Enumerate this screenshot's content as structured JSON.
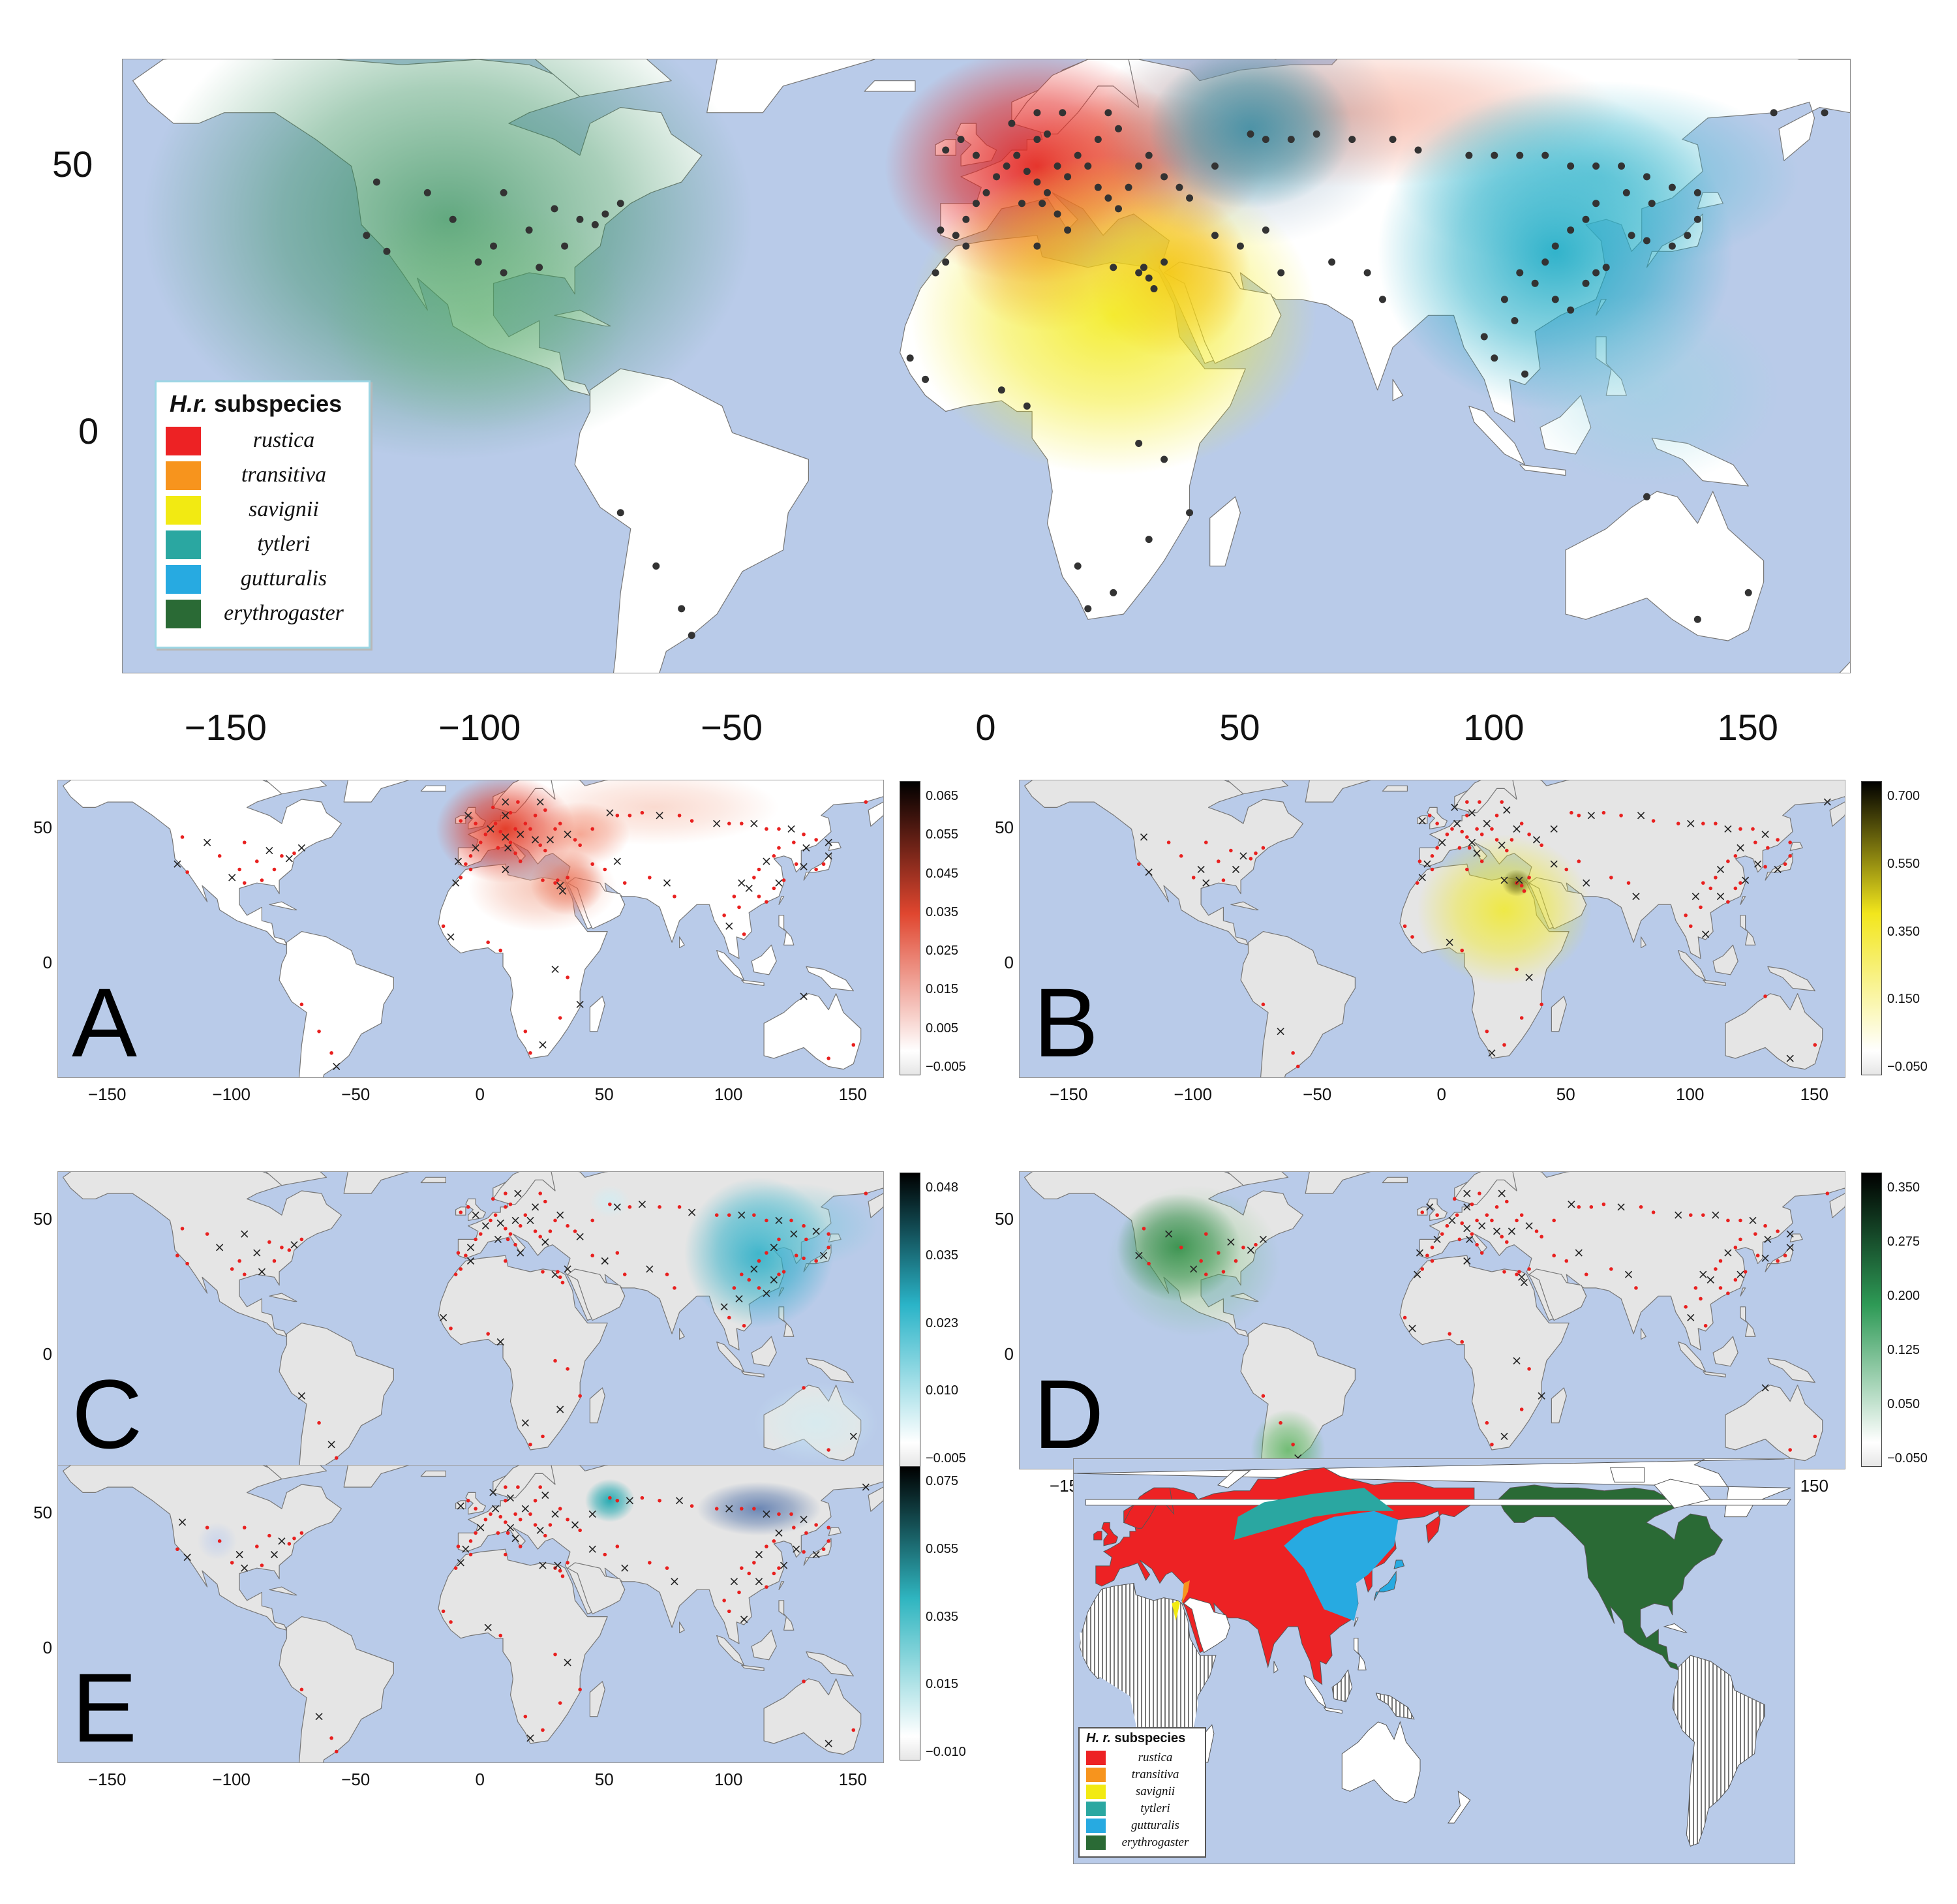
{
  "legend": {
    "title_italic": "H.r.",
    "title_rest": " subspecies",
    "entries": [
      {
        "label": "rustica",
        "color": "#ed2224"
      },
      {
        "label": "transitiva",
        "color": "#f7941d"
      },
      {
        "label": "savignii",
        "color": "#f2ea12"
      },
      {
        "label": "tytleri",
        "color": "#2aa7a1"
      },
      {
        "label": "gutturalis",
        "color": "#27aae1"
      },
      {
        "label": "erythrogaster",
        "color": "#2a6a35"
      }
    ]
  },
  "main_axes": {
    "x_ticks": [
      "−150",
      "−100",
      "−50",
      "0",
      "50",
      "100",
      "150"
    ],
    "y_ticks": [
      "50",
      "0"
    ]
  },
  "small_axes": {
    "x_ticks": [
      "−150",
      "−100",
      "−50",
      "0",
      "50",
      "100",
      "150"
    ],
    "y_ticks": [
      "50",
      "0"
    ]
  },
  "panels": [
    {
      "letter": "A",
      "accent": "#e0462f",
      "colorbar_labels": [
        "0.065",
        "0.055",
        "0.045",
        "0.035",
        "0.025",
        "0.015",
        "0.005",
        "−0.005"
      ]
    },
    {
      "letter": "B",
      "accent": "#f2e61c",
      "colorbar_labels": [
        "0.700",
        "0.550",
        "0.350",
        "0.150",
        "−0.050"
      ]
    },
    {
      "letter": "C",
      "accent": "#2ab4c8",
      "colorbar_labels": [
        "0.048",
        "0.035",
        "0.023",
        "0.010",
        "−0.005"
      ]
    },
    {
      "letter": "D",
      "accent": "#2e9a56",
      "colorbar_labels": [
        "0.350",
        "0.275",
        "0.200",
        "0.125",
        "0.050",
        "−0.050"
      ]
    },
    {
      "letter": "E",
      "accent": "#2fb5c0",
      "colorbar_labels": [
        "0.075",
        "0.055",
        "0.035",
        "0.015",
        "−0.010"
      ]
    }
  ],
  "range_legend": {
    "title_italic": "H. r.",
    "title_rest": " subspecies"
  },
  "colors": {
    "ocean": "#b9cbe9",
    "land": "#ffffff",
    "land_grey": "#e5e5e5",
    "point_dark": "#333333",
    "point_red": "#e8201f"
  }
}
